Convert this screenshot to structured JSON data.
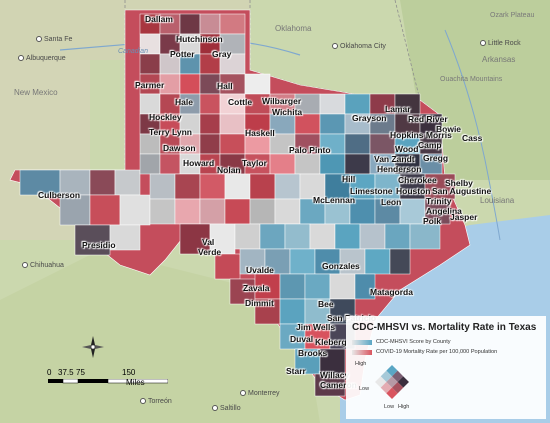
{
  "title": "CDC-MHSVI vs. Mortality Rate in Texas",
  "legend": {
    "layer1": "CDC-MHSVI Score by County",
    "layer2": "COVID-19 Mortality Rate per 100,000 Population",
    "high": "High",
    "low": "Low",
    "axis_low": "Low",
    "axis_high": "High",
    "colors": {
      "low_low": "#e8e8e8",
      "high_svi_low_mort": "#5aa6c4",
      "low_svi_high_mort": "#d9545f",
      "high_high": "#3b2f3e"
    }
  },
  "scale": {
    "ticks": [
      "0",
      "37.5",
      "75",
      "150"
    ],
    "unit": "Miles"
  },
  "compass": {
    "n": "N",
    "s": "S",
    "e": "E",
    "w": "W"
  },
  "places": {
    "states": [
      "New Mexico",
      "Oklahoma",
      "Arkansas",
      "Louisiana"
    ],
    "cities": [
      "Santa Fe",
      "Albuquerque",
      "Oklahoma City",
      "Little Rock",
      "Chihuahua",
      "Monterrey",
      "Torreón",
      "Saltillo"
    ],
    "water": "Canadian",
    "other": [
      "Ozark Plateau",
      "Ouachita Mountains"
    ]
  },
  "counties": {
    "dallam": "Dallam",
    "hutchinson": "Hutchinson",
    "potter": "Potter",
    "gray": "Gray",
    "parmer": "Parmer",
    "hall": "Hall",
    "hale": "Hale",
    "cottle": "Cottle",
    "hockley": "Hockley",
    "wilbarger": "Wilbarger",
    "wichita": "Wichita",
    "terry_lynn": "Terry Lynn",
    "haskell": "Haskell",
    "grayson": "Grayson",
    "lamar": "Lamar",
    "red_river": "Red River",
    "bowie": "Bowie",
    "hopkins_morris": "Hopkins Morris",
    "camp": "Camp",
    "cass": "Cass",
    "dawson": "Dawson",
    "palo_pinto": "Palo Pinto",
    "wood": "Wood",
    "gregg": "Gregg",
    "howard": "Howard",
    "nolan": "Nolan",
    "taylor": "Taylor",
    "van_zandt": "Van Zandt",
    "henderson": "Henderson",
    "cherokee": "Cherokee",
    "shelby": "Shelby",
    "hill": "Hill",
    "limestone": "Limestone",
    "houston": "Houston",
    "san_augustine": "San Augustine",
    "culberson": "Culberson",
    "mclennan": "McLennan",
    "leon": "Leon",
    "trinity": "Trinity",
    "angelina": "Angelina",
    "polk": "Polk",
    "jasper": "Jasper",
    "presidio": "Presidio",
    "val_verde": "Val Verde",
    "gonzales": "Gonzales",
    "uvalde": "Uvalde",
    "zavala": "Zavala",
    "dimmit": "Dimmit",
    "matagorda": "Matagorda",
    "bee": "Bee",
    "san_patricio": "San Patricio",
    "jim_wells": "Jim Wells",
    "duval": "Duval",
    "kleberg": "Kleberg",
    "brooks": "Brooks",
    "starr": "Starr",
    "willacy": "Willacy",
    "cameron": "Cameron"
  }
}
